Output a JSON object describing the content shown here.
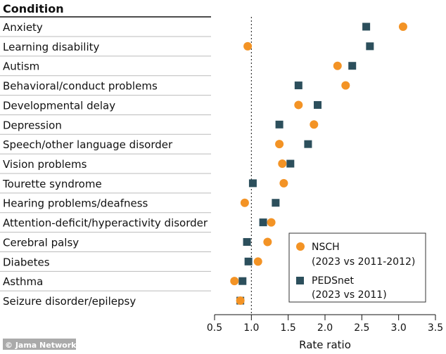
{
  "chart_data": {
    "type": "scatter",
    "column_header": "Condition",
    "xlabel": "Rate ratio",
    "xlim": [
      0.5,
      3.5
    ],
    "xticks": [
      "0.5",
      "1.0",
      "1.5",
      "2.0",
      "2.5",
      "3.0",
      "3.5"
    ],
    "reference_line": 1.0,
    "legend_placement": "bottom-right",
    "categories": [
      "Anxiety",
      "Learning disability",
      "Autism",
      "Behavioral/conduct problems",
      "Developmental delay",
      "Depression",
      "Speech/other language disorder",
      "Vision problems",
      "Tourette syndrome",
      "Hearing problems/deafness",
      "Attention-deficit/hyperactivity disorder",
      "Cerebral palsy",
      "Diabetes",
      "Asthma",
      "Seizure disorder/epilepsy"
    ],
    "series": [
      {
        "name": "NSCH",
        "name_sub": "(2023 vs 2011-2012)",
        "marker": "circle",
        "color": "#f39325",
        "values": [
          3.06,
          0.95,
          2.17,
          2.28,
          1.64,
          1.85,
          1.38,
          1.42,
          1.44,
          0.91,
          1.27,
          1.22,
          1.09,
          0.77,
          0.85
        ]
      },
      {
        "name": "PEDSnet",
        "name_sub": "(2023 vs 2011)",
        "marker": "square",
        "color": "#2c4f5c",
        "values": [
          2.56,
          2.61,
          2.37,
          1.64,
          1.9,
          1.38,
          1.77,
          1.53,
          1.02,
          1.33,
          1.16,
          0.94,
          0.96,
          0.88,
          0.85
        ]
      }
    ]
  },
  "watermark": "© Jama Network"
}
